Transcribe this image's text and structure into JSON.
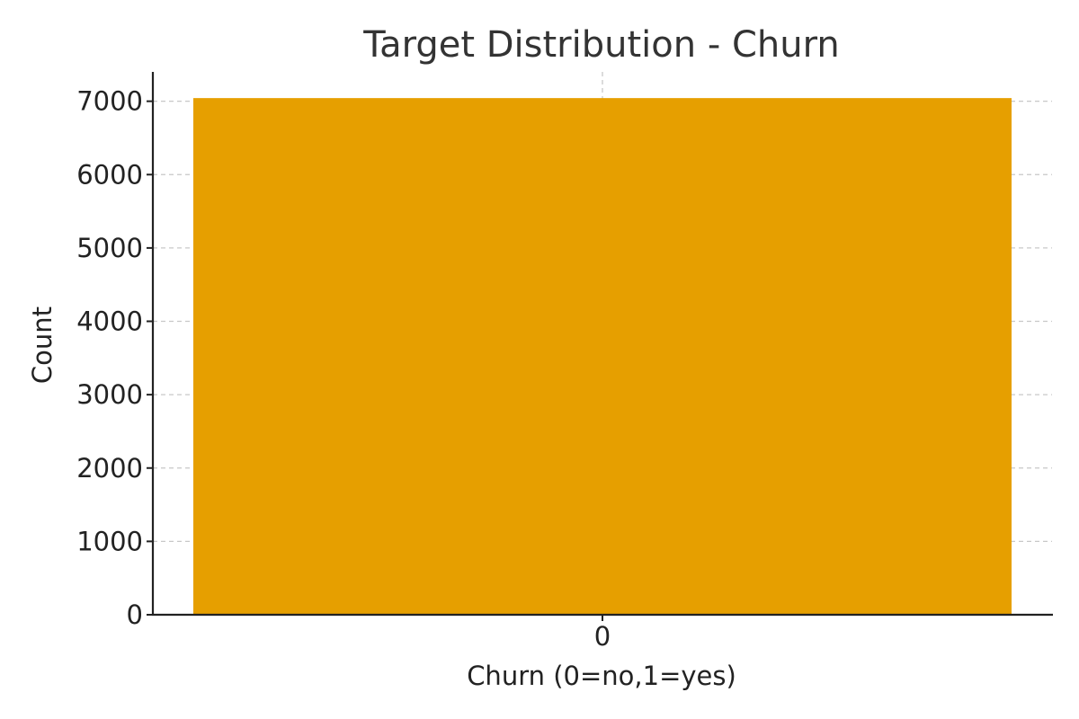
{
  "chart_data": {
    "type": "bar",
    "title": "Target Distribution - Churn",
    "xlabel": "Churn (0=no,1=yes)",
    "ylabel": "Count",
    "categories": [
      "0"
    ],
    "values": [
      7043
    ],
    "ylim": [
      0,
      7400
    ],
    "yticks": [
      0,
      1000,
      2000,
      3000,
      4000,
      5000,
      6000,
      7000
    ],
    "grid": true,
    "bar_color": "#E69F00"
  }
}
